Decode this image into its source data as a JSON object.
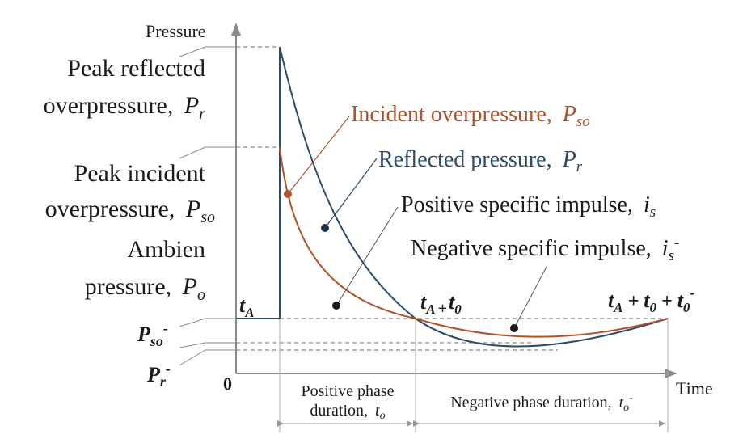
{
  "axes": {
    "y_label": "Pressure",
    "x_label": "Time",
    "origin_label": "0"
  },
  "left_labels": {
    "peak_reflected_line1": "Peak reflected",
    "peak_reflected_line2": "overpressure,",
    "peak_reflected_sym": "P",
    "peak_reflected_sub": "r",
    "peak_incident_line1": "Peak incident",
    "peak_incident_line2": "overpressure,",
    "peak_incident_sym": "P",
    "peak_incident_sub": "so",
    "ambient_line1": "Ambien",
    "ambient_line2": "pressure,",
    "ambient_sym": "P",
    "ambient_sub": "o",
    "neg_incident_sym": "P",
    "neg_incident_sub": "so",
    "neg_incident_sup": "-",
    "neg_reflected_sym": "P",
    "neg_reflected_sub": "r",
    "neg_reflected_sup": "-"
  },
  "callouts": {
    "incident_text": "Incident overpressure,",
    "incident_sym": "P",
    "incident_sub": "so",
    "reflected_text": "Reflected pressure,",
    "reflected_sym": "P",
    "reflected_sub": "r",
    "pos_impulse_text": "Positive specific impulse,",
    "pos_impulse_sym": "i",
    "pos_impulse_sub": "s",
    "neg_impulse_text": "Negative specific impulse,",
    "neg_impulse_sym": "i",
    "neg_impulse_sub": "s",
    "neg_impulse_sup": "-"
  },
  "time_marks": {
    "tA_sym": "t",
    "tA_sub": "A",
    "tA_t0_a": "t",
    "tA_t0_asub": "A",
    "tA_t0_plus": "+",
    "tA_t0_b": "t",
    "tA_t0_bsub": "0",
    "end_a": "t",
    "end_asub": "A",
    "end_plus1": "+",
    "end_b": "t",
    "end_bsub": "0",
    "end_plus2": "+",
    "end_c": "t",
    "end_csub": "0",
    "end_csup": "-"
  },
  "durations": {
    "positive_line1": "Positive phase",
    "positive_line2": "duration,",
    "positive_sym": "t",
    "positive_sub": "o",
    "negative_text": "Negative phase duration,",
    "negative_sym": "t",
    "negative_sub": "o",
    "negative_sup": "-"
  },
  "colors": {
    "reflected": "#2b4b6b",
    "incident": "#b0522a",
    "axis": "#7a7a7a",
    "dashed": "#8a8a8a",
    "text": "#1a1a1a",
    "dot": "#1a1a1a"
  }
}
